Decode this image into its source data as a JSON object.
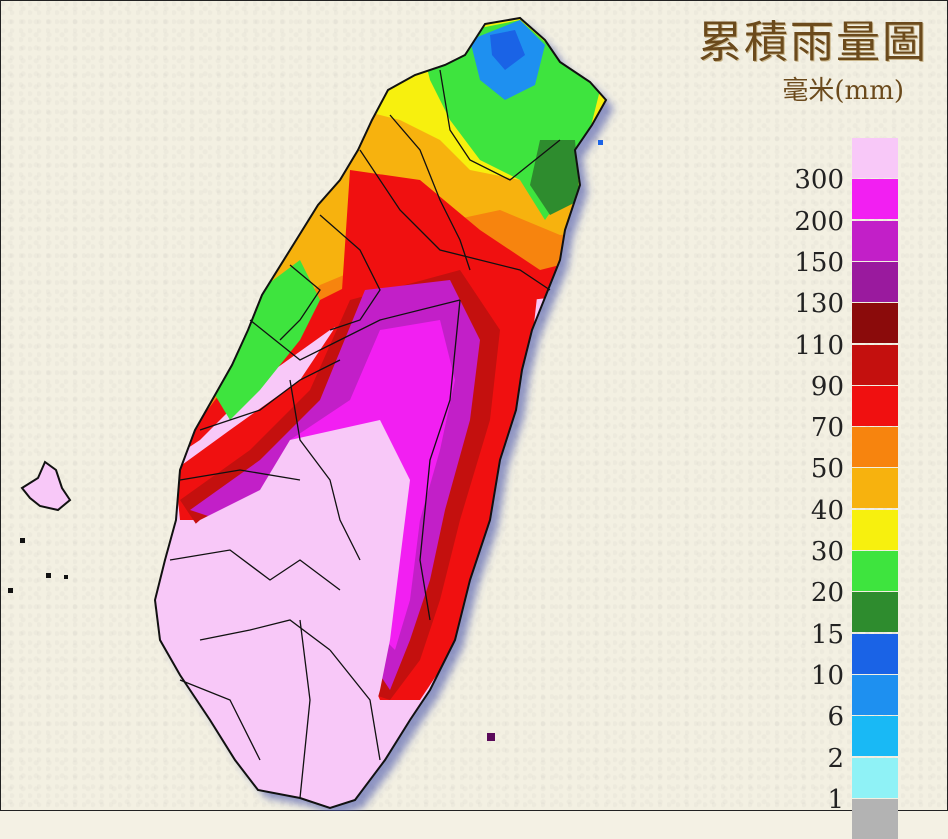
{
  "title": "累積雨量圖",
  "unit": "毫米(mm)",
  "legend": [
    {
      "label": "",
      "color": "#f8c8f8"
    },
    {
      "label": "300",
      "color": "#f21ff2"
    },
    {
      "label": "200",
      "color": "#c21fc8"
    },
    {
      "label": "150",
      "color": "#9a1a9e"
    },
    {
      "label": "130",
      "color": "#8b0b0b"
    },
    {
      "label": "110",
      "color": "#c4100e"
    },
    {
      "label": "90",
      "color": "#f01010"
    },
    {
      "label": "70",
      "color": "#f7840e"
    },
    {
      "label": "50",
      "color": "#f7b20e"
    },
    {
      "label": "40",
      "color": "#f7f00e"
    },
    {
      "label": "30",
      "color": "#3ee43e"
    },
    {
      "label": "20",
      "color": "#2e8c2e"
    },
    {
      "label": "15",
      "color": "#1a63e6"
    },
    {
      "label": "10",
      "color": "#1e90f0"
    },
    {
      "label": "6",
      "color": "#19b9f5"
    },
    {
      "label": "2",
      "color": "#8ff2f6"
    },
    {
      "label": "1",
      "color": "#b3b3b3"
    }
  ]
}
